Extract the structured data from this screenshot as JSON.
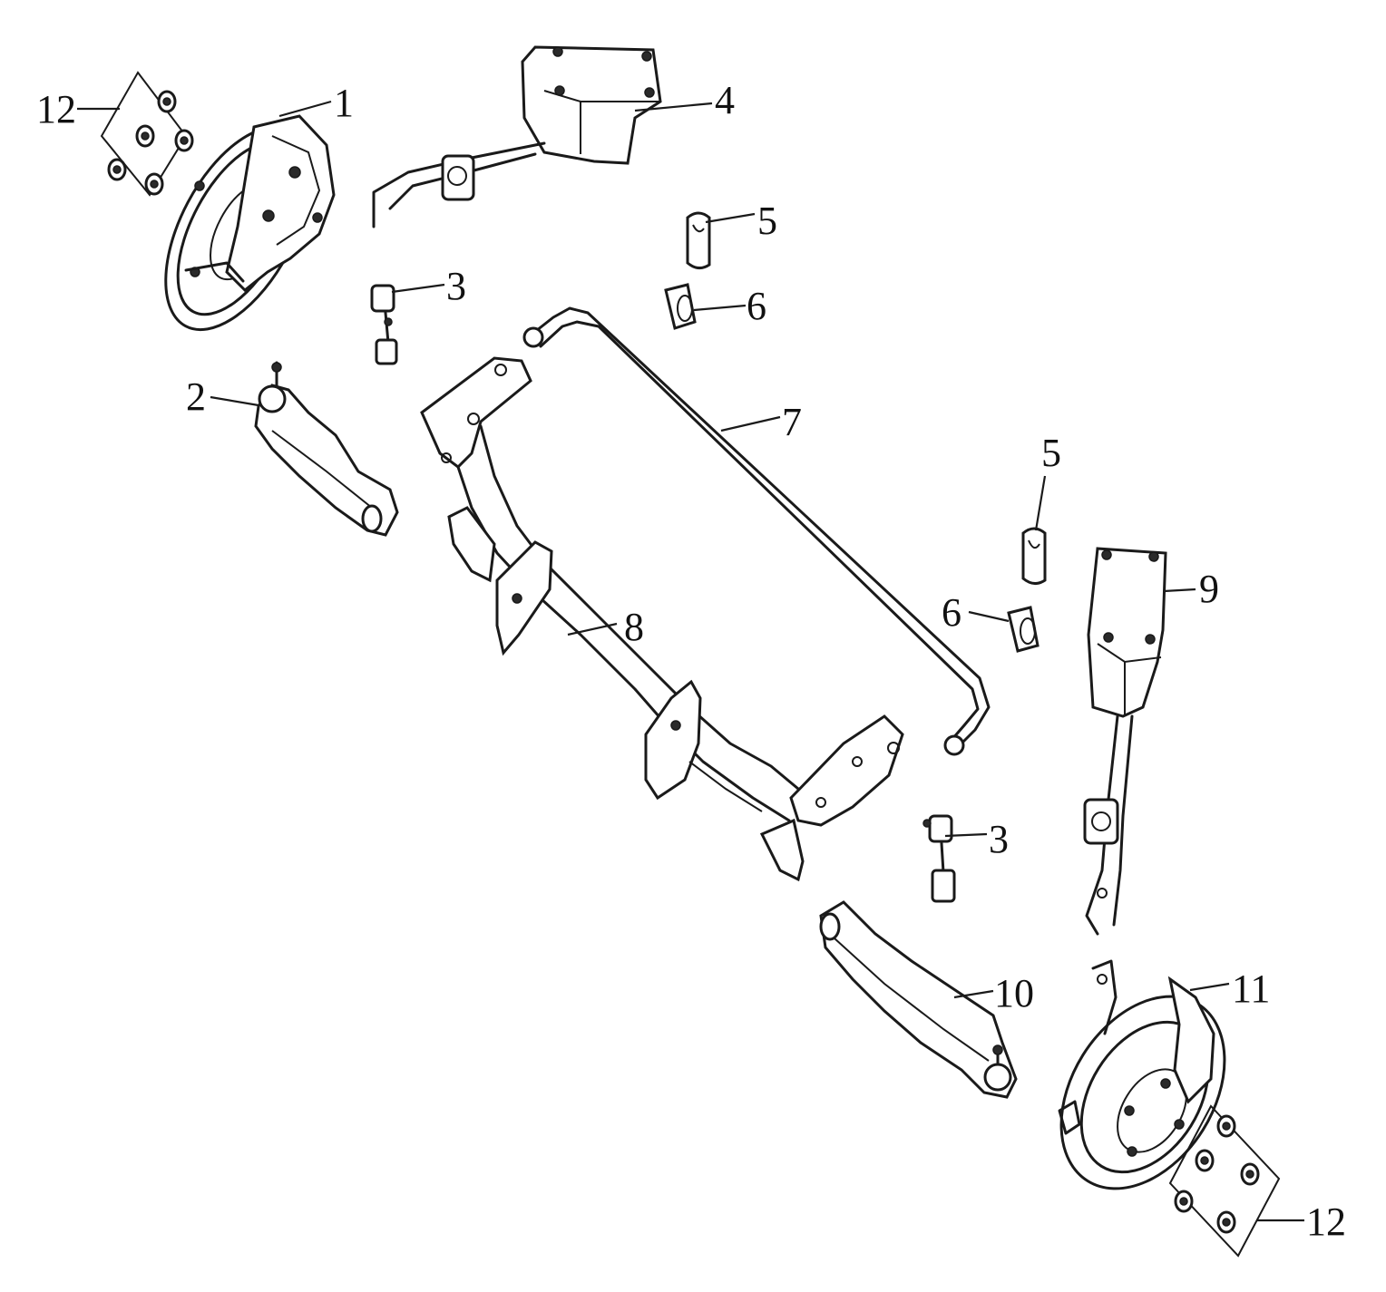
{
  "callouts": {
    "c1": "1",
    "c2": "2",
    "c3a": "3",
    "c3b": "3",
    "c4": "4",
    "c5a": "5",
    "c5b": "5",
    "c6a": "6",
    "c6b": "6",
    "c7": "7",
    "c8": "8",
    "c9": "9",
    "c10": "10",
    "c11": "11",
    "c12a": "12",
    "c12b": "12"
  },
  "colors": {
    "ink": "#1a1a1a",
    "background": "#ffffff"
  }
}
